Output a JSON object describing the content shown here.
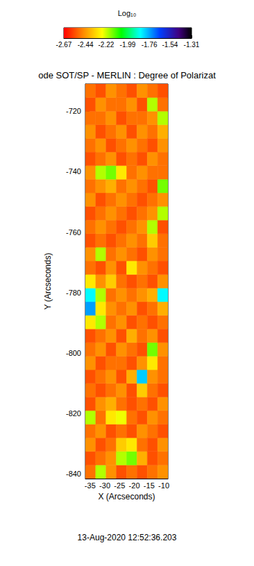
{
  "chart_data": {
    "type": "heatmap",
    "title": "ode SOT/SP - MERLIN : Degree of Polarizat",
    "subtitle": "13-Aug-2020 12:52:36.203",
    "x_label": "X (Arcseconds)",
    "y_label": "Y (Arcseconds)",
    "xlim": [
      -36.6,
      -8.6
    ],
    "ylim": [
      -841.5,
      -711.0
    ],
    "xticks": [
      -35,
      -30,
      -25,
      -20,
      -15,
      -10
    ],
    "yticks": [
      -840,
      -820,
      -800,
      -780,
      -760,
      -740,
      -720
    ],
    "x_edges": [
      -36.6,
      -33.1,
      -29.6,
      -26.1,
      -22.6,
      -19.1,
      -15.6,
      -12.1,
      -8.6
    ],
    "y_edges": [
      -841.5,
      -837.0,
      -832.5,
      -828.0,
      -823.5,
      -819.0,
      -814.5,
      -810.0,
      -805.5,
      -801.0,
      -796.5,
      -792.0,
      -787.5,
      -783.0,
      -778.5,
      -774.0,
      -769.5,
      -765.0,
      -760.5,
      -756.0,
      -751.5,
      -747.0,
      -742.5,
      -738.0,
      -733.5,
      -729.0,
      -724.5,
      -720.0,
      -715.5,
      -711.0
    ],
    "cells": [
      [
        -2.5,
        -2.2,
        -2.45,
        -2.55,
        -2.5,
        -2.55,
        -2.5,
        -2.45
      ],
      [
        -2.55,
        -2.5,
        -2.45,
        -2.2,
        -2.15,
        -2.4,
        -2.55,
        -2.5
      ],
      [
        -2.45,
        -2.55,
        -2.5,
        -2.35,
        -2.3,
        -2.5,
        -2.55,
        -2.45
      ],
      [
        -2.5,
        -2.45,
        -2.55,
        -2.5,
        -2.55,
        -2.45,
        -2.5,
        -2.55
      ],
      [
        -2.2,
        -2.5,
        -2.3,
        -2.25,
        -2.5,
        -2.55,
        -2.45,
        -2.5
      ],
      [
        -2.55,
        -2.45,
        -2.4,
        -2.5,
        -2.55,
        -2.5,
        -2.55,
        -2.45
      ],
      [
        -2.5,
        -2.55,
        -2.5,
        -2.45,
        -2.55,
        -2.35,
        -2.5,
        -2.55
      ],
      [
        -2.55,
        -2.5,
        -2.45,
        -2.55,
        -2.4,
        -1.8,
        -2.45,
        -2.5
      ],
      [
        -2.45,
        -2.55,
        -2.5,
        -2.5,
        -2.55,
        -2.45,
        -2.3,
        -2.5
      ],
      [
        -2.5,
        -2.45,
        -2.55,
        -2.45,
        -2.5,
        -2.55,
        -2.15,
        -2.45
      ],
      [
        -2.55,
        -2.5,
        -2.45,
        -2.55,
        -2.4,
        -2.5,
        -2.45,
        -2.55
      ],
      [
        -2.3,
        -2.2,
        -2.5,
        -2.45,
        -2.55,
        -2.5,
        -2.55,
        -2.5
      ],
      [
        -1.75,
        -2.3,
        -2.45,
        -2.5,
        -2.45,
        -2.55,
        -2.5,
        -2.4
      ],
      [
        -1.85,
        -2.2,
        -2.5,
        -2.45,
        -2.5,
        -2.45,
        -2.4,
        -1.85
      ],
      [
        -2.3,
        -2.45,
        -2.35,
        -2.5,
        -2.55,
        -2.5,
        -2.55,
        -2.45
      ],
      [
        -2.5,
        -2.55,
        -2.45,
        -2.55,
        -2.3,
        -2.45,
        -2.5,
        -2.55
      ],
      [
        -2.45,
        -2.2,
        -2.5,
        -2.45,
        -2.5,
        -2.55,
        -2.45,
        -2.5
      ],
      [
        -2.55,
        -2.5,
        -2.55,
        -2.5,
        -2.45,
        -2.5,
        -2.35,
        -2.5
      ],
      [
        -2.5,
        -2.45,
        -2.5,
        -2.55,
        -2.5,
        -2.45,
        -2.2,
        -2.55
      ],
      [
        -2.55,
        -2.5,
        -2.45,
        -2.5,
        -2.55,
        -2.5,
        -2.45,
        -2.2
      ],
      [
        -2.45,
        -2.55,
        -2.5,
        -2.45,
        -2.5,
        -2.55,
        -2.5,
        -2.45
      ],
      [
        -2.5,
        -2.45,
        -2.4,
        -2.5,
        -2.45,
        -2.5,
        -2.55,
        -2.15
      ],
      [
        -2.45,
        -2.2,
        -2.15,
        -2.3,
        -2.5,
        -2.45,
        -2.5,
        -2.5
      ],
      [
        -2.55,
        -2.5,
        -2.45,
        -2.55,
        -2.5,
        -2.55,
        -2.45,
        -2.5
      ],
      [
        -2.5,
        -2.45,
        -2.55,
        -2.5,
        -2.45,
        -2.5,
        -2.55,
        -2.45
      ],
      [
        -2.45,
        -2.55,
        -2.5,
        -2.45,
        -2.55,
        -2.45,
        -2.5,
        -2.4
      ],
      [
        -2.5,
        -2.5,
        -2.45,
        -2.55,
        -2.5,
        -2.5,
        -2.45,
        -2.2
      ],
      [
        -2.55,
        -2.45,
        -2.5,
        -2.5,
        -2.45,
        -2.55,
        -2.2,
        -2.5
      ],
      [
        -2.5,
        -2.55,
        -2.45,
        -2.5,
        -2.55,
        -2.45,
        -2.5,
        -2.55
      ]
    ],
    "colorbar": {
      "label": "Log₁₀",
      "range": [
        -2.67,
        -1.31
      ],
      "ticks": [
        -2.67,
        -2.44,
        -2.22,
        -1.99,
        -1.76,
        -1.54,
        -1.31
      ]
    }
  }
}
